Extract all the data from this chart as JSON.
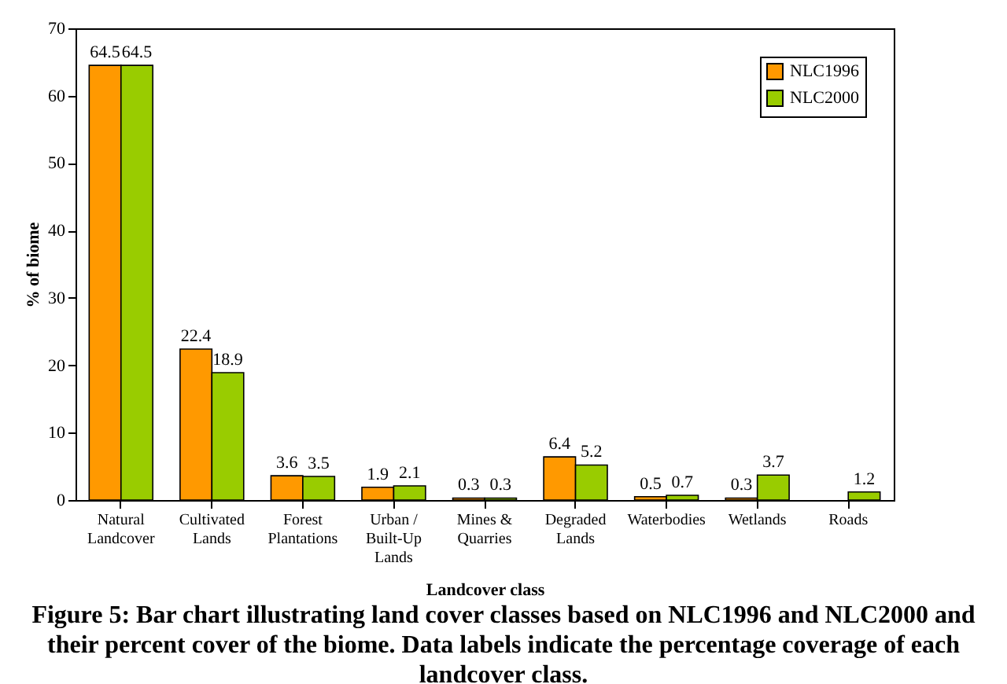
{
  "chart_data": {
    "type": "bar",
    "categories": [
      "Natural Landcover",
      "Cultivated Lands",
      "Forest Plantations",
      "Urban / Built-Up Lands",
      "Mines & Quarries",
      "Degraded Lands",
      "Waterbodies",
      "Wetlands",
      "Roads"
    ],
    "series": [
      {
        "name": "NLC1996",
        "color": "#ff9900",
        "values": [
          64.5,
          22.4,
          3.6,
          1.9,
          0.3,
          6.4,
          0.5,
          0.3,
          null
        ]
      },
      {
        "name": "NLC2000",
        "color": "#99cc00",
        "values": [
          64.5,
          18.9,
          3.5,
          2.1,
          0.3,
          5.2,
          0.7,
          3.7,
          1.2
        ]
      }
    ],
    "xlabel": "Landcover class",
    "ylabel": "% of biome",
    "ylim": [
      0,
      70
    ],
    "yticks": [
      0,
      10,
      20,
      30,
      40,
      50,
      60,
      70
    ],
    "grid": false,
    "legend": "top right",
    "data_labels": true,
    "annotations": [
      "Figure 5: Bar chart illustrating land cover classes based on NLC1996 and NLC2000 and their percent cover of the biome. Data labels indicate the percentage coverage of each landcover class."
    ]
  }
}
